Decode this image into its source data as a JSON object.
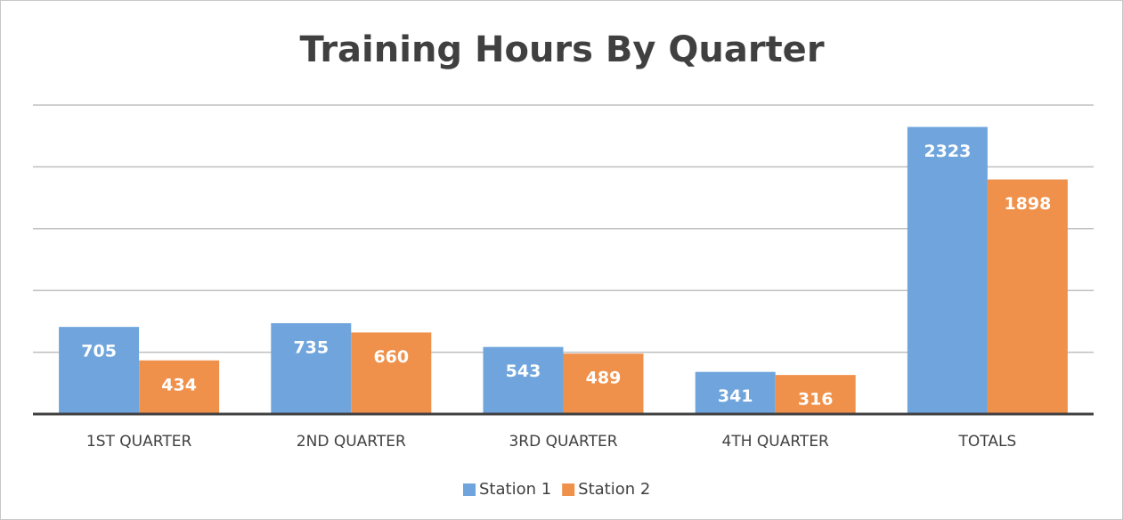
{
  "chart_data": {
    "type": "bar",
    "title": "Training Hours By Quarter",
    "categories": [
      "1ST QUARTER",
      "2ND QUARTER",
      "3RD QUARTER",
      "4TH QUARTER",
      "TOTALS"
    ],
    "series": [
      {
        "name": "Station 1",
        "color": "#6fa5dc",
        "values": [
          705,
          735,
          543,
          341,
          2323
        ]
      },
      {
        "name": "Station 2",
        "color": "#f0914b",
        "values": [
          434,
          660,
          489,
          316,
          1898
        ]
      }
    ],
    "ylim": [
      0,
      2500
    ],
    "yticks": [
      0,
      500,
      1000,
      1500,
      2000,
      2500
    ],
    "grid": true,
    "legend": "bottom"
  }
}
